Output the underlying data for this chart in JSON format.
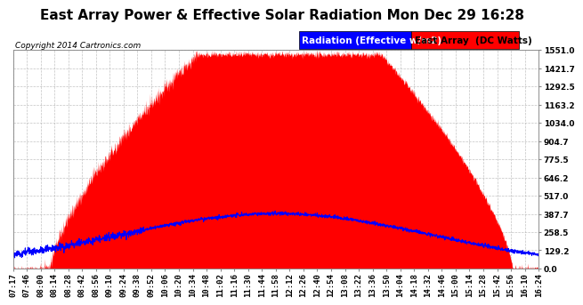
{
  "title": "East Array Power & Effective Solar Radiation Mon Dec 29 16:28",
  "copyright": "Copyright 2014 Cartronics.com",
  "legend_blue_label": "Radiation (Effective w/m2)",
  "legend_red_label": "East Array  (DC Watts)",
  "y_ticks": [
    0.0,
    129.2,
    258.5,
    387.7,
    517.0,
    646.2,
    775.5,
    904.7,
    1034.0,
    1163.2,
    1292.5,
    1421.7,
    1551.0
  ],
  "x_labels": [
    "07:17",
    "07:46",
    "08:00",
    "08:14",
    "08:28",
    "08:42",
    "08:56",
    "09:10",
    "09:24",
    "09:38",
    "09:52",
    "10:06",
    "10:20",
    "10:34",
    "10:48",
    "11:02",
    "11:16",
    "11:30",
    "11:44",
    "11:58",
    "12:12",
    "12:26",
    "12:40",
    "12:54",
    "13:08",
    "13:22",
    "13:36",
    "13:50",
    "14:04",
    "14:18",
    "14:32",
    "14:46",
    "15:00",
    "15:14",
    "15:28",
    "15:42",
    "15:56",
    "16:10",
    "16:24"
  ],
  "y_max": 1551.0,
  "y_min": 0.0,
  "background_color": "#ffffff",
  "plot_bg_color": "#ffffff",
  "grid_color": "#aaaaaa",
  "red_color": "#ff0000",
  "blue_color": "#0000ff",
  "title_fontsize": 11,
  "copyright_fontsize": 6.5,
  "tick_fontsize": 6.5,
  "legend_fontsize": 7.5
}
